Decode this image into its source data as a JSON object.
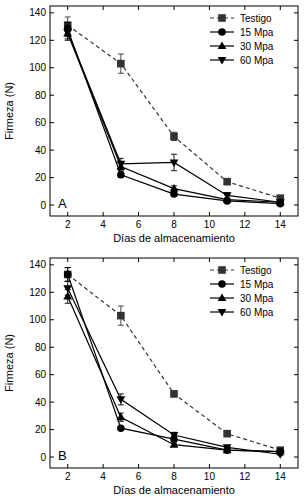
{
  "chart_data": [
    {
      "type": "line",
      "title": "A",
      "x_label": "Días de almacenamiento",
      "y_label": "Firmeza (N)",
      "x": [
        2,
        5,
        8,
        11,
        14
      ],
      "xlim": [
        1,
        15
      ],
      "xticks": [
        2,
        4,
        6,
        8,
        10,
        12,
        14
      ],
      "ylim": [
        -8,
        145
      ],
      "yticks": [
        0,
        20,
        40,
        60,
        80,
        100,
        120,
        140
      ],
      "legend": "upper right",
      "grid": false,
      "series": [
        {
          "name": "Testigo",
          "color": "#333333",
          "marker": "square",
          "line_style": "dashed",
          "values": [
            131,
            103,
            50,
            17,
            5
          ],
          "errors": [
            6,
            7,
            3,
            2,
            1
          ]
        },
        {
          "name": "15 Mpa",
          "color": "#000000",
          "marker": "circle",
          "line_style": "solid",
          "values": [
            128,
            22,
            8,
            3,
            1
          ],
          "errors": [
            5,
            2,
            1,
            1,
            1
          ]
        },
        {
          "name": "30 Mpa",
          "color": "#000000",
          "marker": "triangle-up",
          "line_style": "solid",
          "values": [
            125,
            28,
            12,
            4,
            2
          ],
          "errors": [
            5,
            3,
            2,
            1,
            1
          ]
        },
        {
          "name": "60 Mpa",
          "color": "#000000",
          "marker": "triangle-down",
          "line_style": "solid",
          "values": [
            126,
            30,
            31,
            7,
            2
          ],
          "errors": [
            5,
            4,
            6,
            2,
            1
          ]
        }
      ]
    },
    {
      "type": "line",
      "title": "B",
      "x_label": "Días de almacenamiento",
      "y_label": "Firmeza (N)",
      "x": [
        2,
        5,
        8,
        11,
        14
      ],
      "xlim": [
        1,
        15
      ],
      "xticks": [
        2,
        4,
        6,
        8,
        10,
        12,
        14
      ],
      "ylim": [
        -8,
        145
      ],
      "yticks": [
        0,
        20,
        40,
        60,
        80,
        100,
        120,
        140
      ],
      "legend": "upper right",
      "grid": false,
      "series": [
        {
          "name": "Testigo",
          "color": "#333333",
          "marker": "square",
          "line_style": "dashed",
          "values": [
            133,
            103,
            46,
            17,
            5
          ],
          "errors": [
            5,
            7,
            2,
            2,
            1
          ]
        },
        {
          "name": "15 Mpa",
          "color": "#000000",
          "marker": "circle",
          "line_style": "solid",
          "values": [
            133,
            21,
            13,
            5,
            4
          ],
          "errors": [
            5,
            1,
            2,
            1,
            1
          ]
        },
        {
          "name": "30 Mpa",
          "color": "#000000",
          "marker": "triangle-up",
          "line_style": "solid",
          "values": [
            117,
            29,
            9,
            5,
            4
          ],
          "errors": [
            5,
            3,
            1,
            1,
            1
          ]
        },
        {
          "name": "60 Mpa",
          "color": "#000000",
          "marker": "triangle-down",
          "line_style": "solid",
          "values": [
            123,
            42,
            16,
            7,
            2
          ],
          "errors": [
            5,
            4,
            2,
            1,
            1
          ]
        }
      ]
    }
  ]
}
